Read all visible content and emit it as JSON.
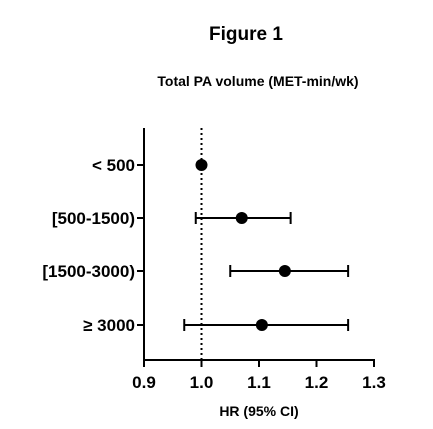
{
  "chart_data": {
    "type": "forest",
    "title": "Figure 1",
    "subtitle": "Total PA volume (MET-min/wk)",
    "xlabel": "HR (95%  CI)",
    "xlim": [
      0.9,
      1.3
    ],
    "xticks": [
      "0.9",
      "1.0",
      "1.1",
      "1.2",
      "1.3"
    ],
    "reference_line": 1.0,
    "rows": [
      {
        "label": "< 500",
        "hr": 1.0,
        "lower": null,
        "upper": null
      },
      {
        "label": "[500-1500)",
        "hr": 1.07,
        "lower": 0.99,
        "upper": 1.155
      },
      {
        "label": "[1500-3000)",
        "hr": 1.145,
        "lower": 1.05,
        "upper": 1.255
      },
      {
        "label": "≥ 3000",
        "hr": 1.105,
        "lower": 0.97,
        "upper": 1.255
      }
    ]
  }
}
